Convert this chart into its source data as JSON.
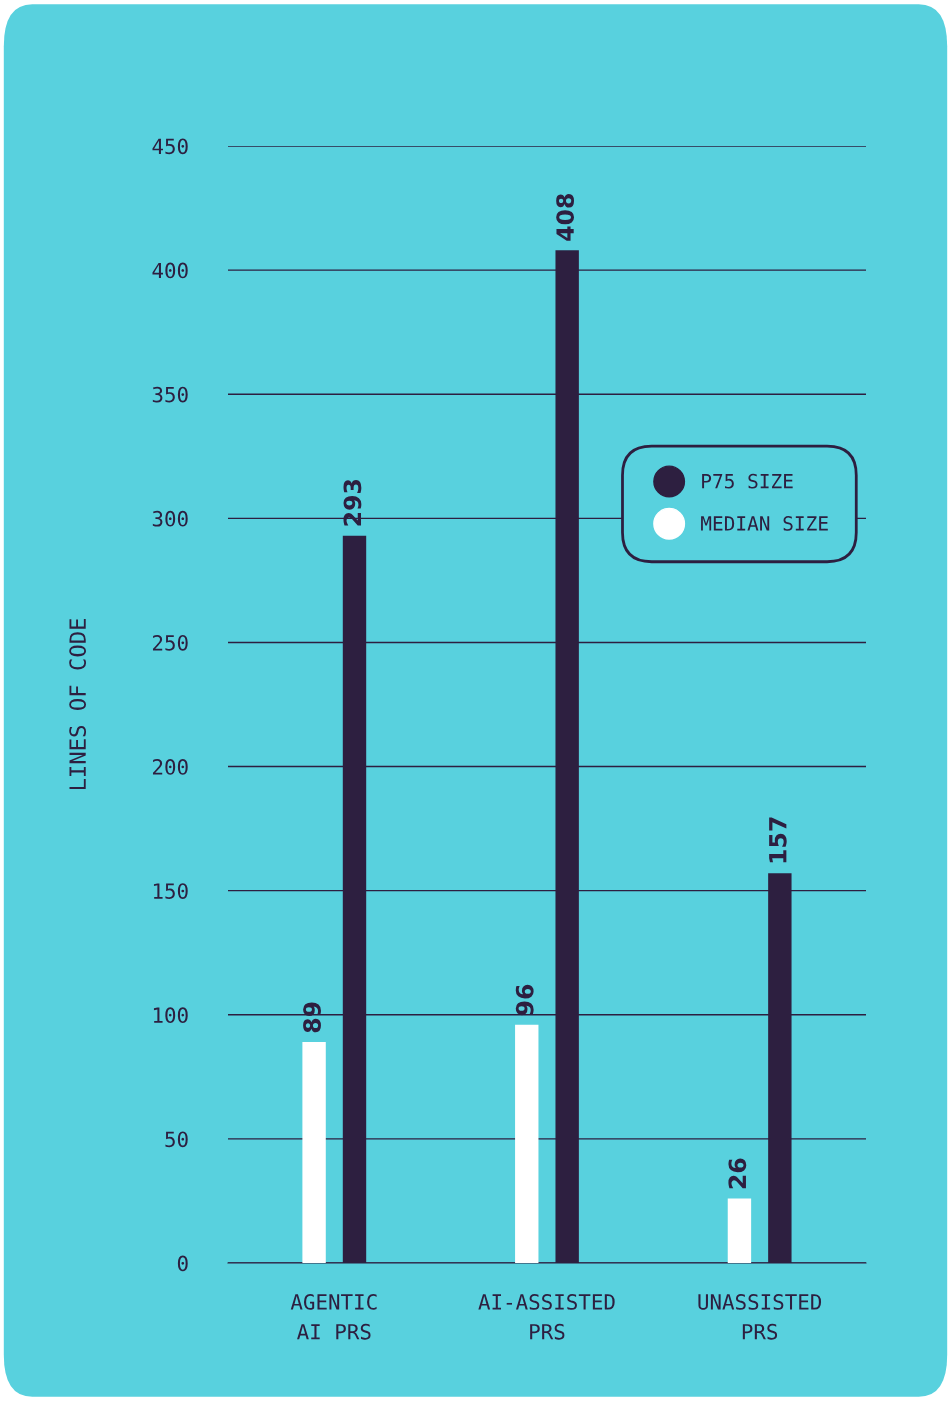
{
  "chart_data": {
    "type": "bar",
    "ylabel": "LINES OF CODE",
    "categories": [
      "AGENTIC\nAI PRS",
      "AI-ASSISTED\nPRS",
      "UNASSISTED\nPRS"
    ],
    "series": [
      {
        "name": "MEDIAN SIZE",
        "color": "#ffffff",
        "values": [
          89,
          96,
          26
        ]
      },
      {
        "name": "P75 SIZE",
        "color": "#2d1f40",
        "values": [
          293,
          408,
          157
        ]
      }
    ],
    "ylim": [
      0,
      450
    ],
    "yticks": [
      0,
      50,
      100,
      150,
      200,
      250,
      300,
      350,
      400,
      450
    ],
    "grid": "y",
    "legend": "upper right",
    "data_labels": true
  }
}
